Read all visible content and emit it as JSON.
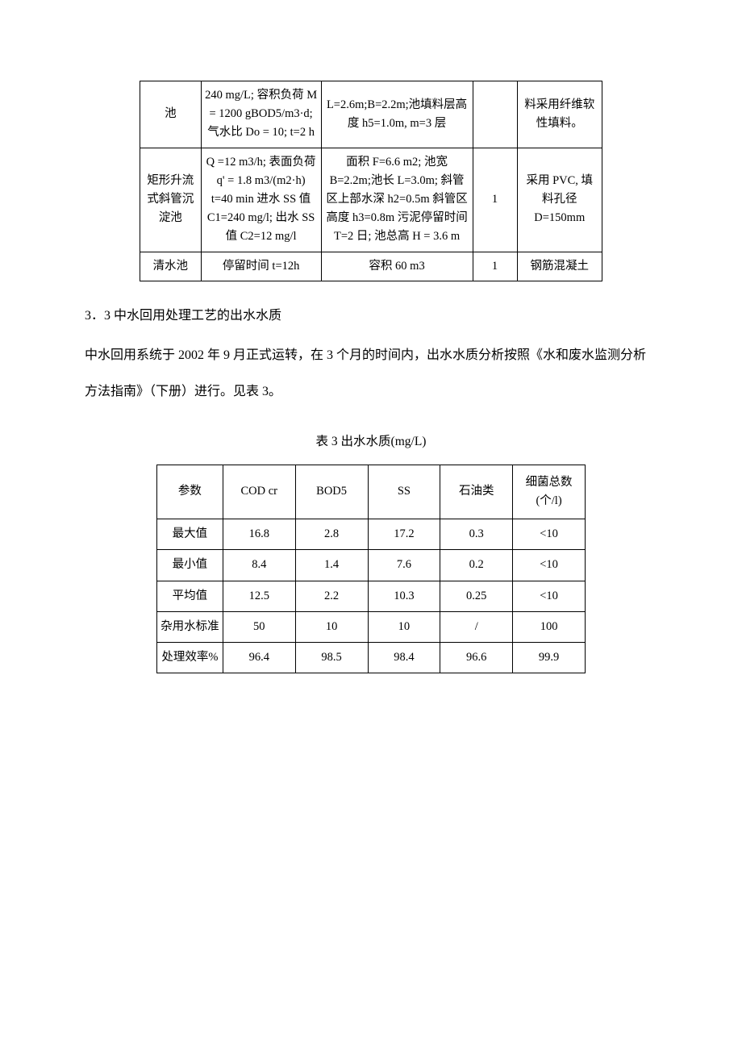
{
  "table1": {
    "rows": [
      {
        "c1": "池",
        "c2": "240 mg/L; 容积负荷 M = 1200 gBOD5/m3·d; 气水比 Do = 10; t=2 h",
        "c3": "L=2.6m;B=2.2m;池填料层高度 h5=1.0m, m=3 层",
        "c4": "",
        "c5": "料采用纤维软性填料。"
      },
      {
        "c1": "矩形升流式斜管沉淀池",
        "c2": "Q =12 m3/h; 表面负荷q' = 1.8 m3/(m2·h) t=40 min 进水 SS 值 C1=240 mg/l; 出水 SS 值 C2=12 mg/l",
        "c3": "面积 F=6.6 m2; 池宽 B=2.2m;池长 L=3.0m; 斜管区上部水深 h2=0.5m 斜管区高度 h3=0.8m 污泥停留时间 T=2 日; 池总高 H = 3.6 m",
        "c4": "1",
        "c5": "采用 PVC, 填料孔径 D=150mm"
      },
      {
        "c1": "清水池",
        "c2": "停留时间 t=12h",
        "c3": "容积 60 m3",
        "c4": "1",
        "c5": "钢筋混凝土"
      }
    ]
  },
  "section_heading": "3．3 中水回用处理工艺的出水水质",
  "body_text": "中水回用系统于 2002 年 9 月正式运转，在 3 个月的时间内，出水水质分析按照《水和废水监测分析方法指南》（下册）进行。见表 3。",
  "table2_caption": "表 3   出水水质(mg/L)",
  "table2": {
    "columns": [
      "参数",
      "COD cr",
      "BOD5",
      "SS",
      "石油类",
      "细菌总数(个/l)"
    ],
    "rows": [
      [
        "最大值",
        "16.8",
        "2.8",
        "17.2",
        "0.3",
        "<10"
      ],
      [
        "最小值",
        "8.4",
        "1.4",
        "7.6",
        "0.2",
        "<10"
      ],
      [
        "平均值",
        "12.5",
        "2.2",
        "10.3",
        "0.25",
        "<10"
      ],
      [
        "杂用水标准",
        "50",
        "10",
        "10",
        "/",
        "100"
      ],
      [
        "处理效率%",
        "96.4",
        "98.5",
        "98.4",
        "96.6",
        "99.9"
      ]
    ]
  }
}
